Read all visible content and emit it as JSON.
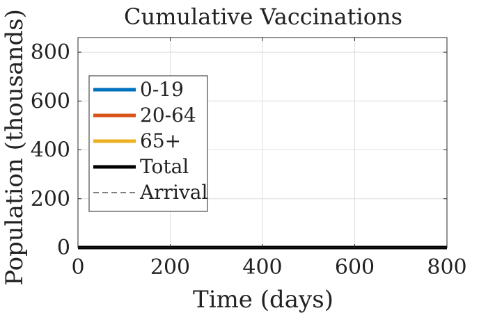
{
  "chart_data": {
    "type": "line",
    "title": "Cumulative Vaccinations",
    "xlabel": "Time (days)",
    "ylabel": "Population (thousands)",
    "xlim": [
      0,
      800
    ],
    "ylim": [
      0,
      860
    ],
    "xticks": [
      0,
      200,
      400,
      600,
      800
    ],
    "yticks": [
      0,
      200,
      400,
      600,
      800
    ],
    "xtick_labels": [
      "0",
      "200",
      "400",
      "600",
      "800"
    ],
    "ytick_labels": [
      "0",
      "200",
      "400",
      "600",
      "800"
    ],
    "grid": true,
    "legend_position": "left",
    "series": [
      {
        "name": "0-19",
        "color": "#0072BD",
        "style": "solid",
        "x": [
          0,
          800
        ],
        "y": [
          0,
          0
        ]
      },
      {
        "name": "20-64",
        "color": "#D95319",
        "style": "solid",
        "x": [
          0,
          800
        ],
        "y": [
          0,
          0
        ]
      },
      {
        "name": "65+",
        "color": "#EDB120",
        "style": "solid",
        "x": [
          0,
          800
        ],
        "y": [
          0,
          0
        ]
      },
      {
        "name": "Total",
        "color": "#000000",
        "style": "solid",
        "x": [
          0,
          800
        ],
        "y": [
          0,
          0
        ]
      },
      {
        "name": "Arrival",
        "color": "#000000",
        "style": "dashed",
        "x": [],
        "y": []
      }
    ]
  }
}
